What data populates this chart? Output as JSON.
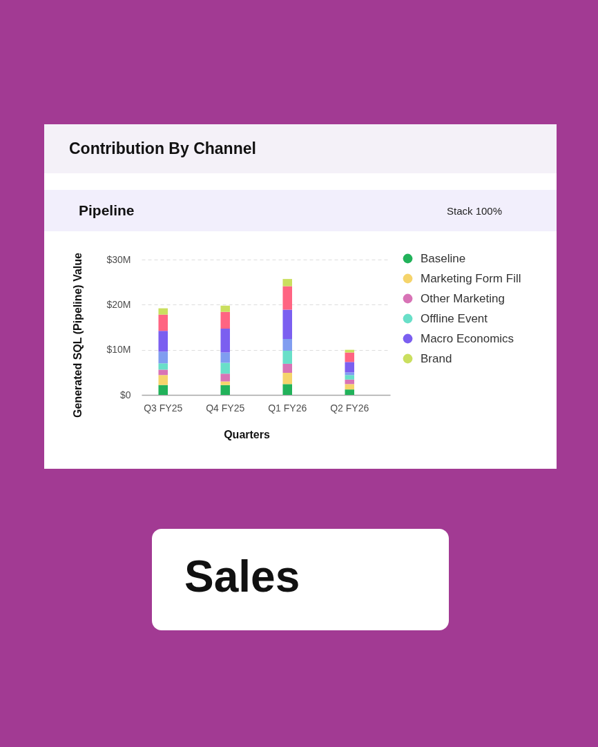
{
  "chart_data": {
    "type": "bar",
    "title": "Contribution By Channel",
    "subtitle": "Pipeline",
    "xlabel": "Quarters",
    "ylabel": "Generated SQL (Pipeline) Value",
    "annotations": [
      "Stack 100%",
      "Sales"
    ],
    "categories": [
      "Q3 FY25",
      "Q4 FY25",
      "Q1 FY26",
      "Q2 FY26"
    ],
    "stacked": true,
    "series": [
      {
        "name": "Baseline",
        "color": "#21b25a",
        "values": [
          2.2,
          2.2,
          2.4,
          1.2
        ]
      },
      {
        "name": "Marketing Form Fill",
        "color": "#f5d46b",
        "values": [
          2.2,
          0.8,
          2.5,
          1.2
        ]
      },
      {
        "name": "Other Marketing",
        "color": "#d873b6",
        "values": [
          1.2,
          1.7,
          2.0,
          1.0
        ]
      },
      {
        "name": "Offline Event",
        "color": "#69dfc8",
        "values": [
          1.4,
          2.4,
          2.9,
          1.0
        ]
      },
      {
        "color": "#809df0",
        "values": [
          2.6,
          2.3,
          2.6,
          0.6
        ]
      },
      {
        "name": "Macro Economics",
        "color": "#7b5ff0",
        "values": [
          4.6,
          5.3,
          6.5,
          2.3
        ]
      },
      {
        "color": "#ff6482",
        "values": [
          3.6,
          3.7,
          5.2,
          2.1
        ]
      },
      {
        "name": "Brand",
        "color": "#cadf5f",
        "values": [
          1.4,
          1.4,
          1.6,
          0.6
        ]
      }
    ],
    "ylim": [
      0,
      30
    ],
    "yticks": [
      {
        "value": 0,
        "label": "$0"
      },
      {
        "value": 10,
        "label": "$10M"
      },
      {
        "value": 20,
        "label": "$20M"
      },
      {
        "value": 30,
        "label": "$30M"
      }
    ],
    "grid": "y",
    "legend": "right"
  }
}
